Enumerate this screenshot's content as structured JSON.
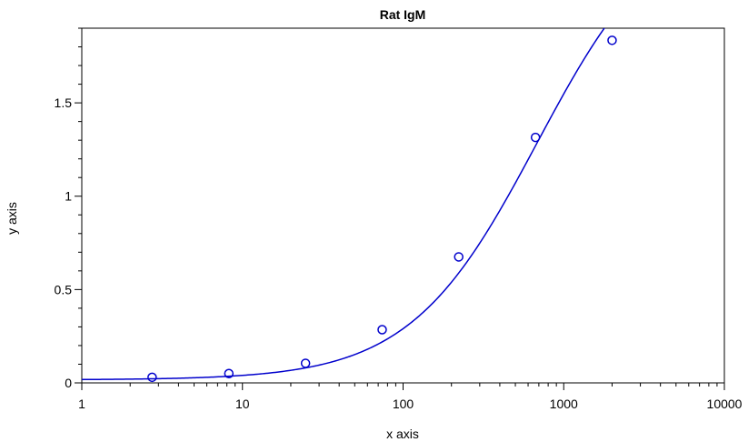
{
  "chart_data": {
    "type": "scatter",
    "title": "Rat IgM",
    "xlabel": "x axis",
    "ylabel": "y axis",
    "x_scale": "log",
    "xlim": [
      1,
      10000
    ],
    "ylim": [
      0,
      1.9
    ],
    "x_ticks": [
      {
        "value": 1,
        "label": "1"
      },
      {
        "value": 10,
        "label": "10"
      },
      {
        "value": 100,
        "label": "100"
      },
      {
        "value": 1000,
        "label": "1000"
      },
      {
        "value": 10000,
        "label": "10000"
      }
    ],
    "y_ticks": [
      {
        "value": 0,
        "label": "0"
      },
      {
        "value": 0.5,
        "label": "0.5"
      },
      {
        "value": 1,
        "label": "1"
      },
      {
        "value": 1.5,
        "label": "1.5"
      }
    ],
    "grid": false,
    "legend": "none",
    "series": [
      {
        "marker": "circle",
        "color": "#0000cc",
        "points": [
          {
            "x": 2.74,
            "y": 0.03
          },
          {
            "x": 8.23,
            "y": 0.05
          },
          {
            "x": 24.7,
            "y": 0.105
          },
          {
            "x": 74.1,
            "y": 0.285
          },
          {
            "x": 222,
            "y": 0.675
          },
          {
            "x": 667,
            "y": 1.315
          },
          {
            "x": 2000,
            "y": 1.835
          }
        ]
      }
    ],
    "fit_curve": {
      "type": "4PL",
      "color": "#0000cc",
      "params": {
        "bottom": 0.016,
        "top": 2.55,
        "ec50": 680,
        "hill": 1.1
      },
      "x_range": [
        1,
        2550
      ]
    }
  }
}
